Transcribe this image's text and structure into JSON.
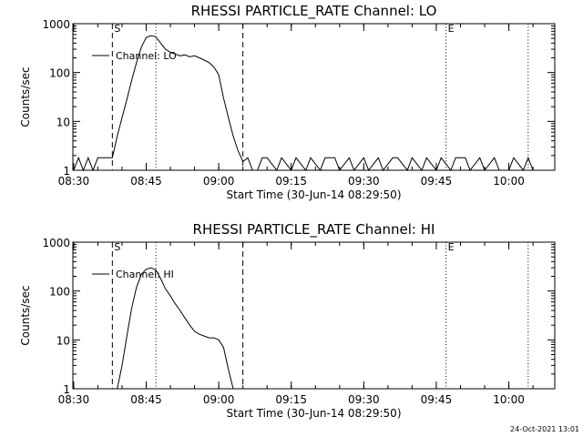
{
  "chart_data": [
    {
      "type": "line",
      "title": "RHESSI PARTICLE_RATE Channel: LO",
      "xlabel": "Start Time (30-Jun-14 08:29:50)",
      "ylabel": "Counts/sec",
      "y_scale": "log",
      "ylim": [
        1,
        1000
      ],
      "xlim": [
        "08:29:50",
        "10:09:30"
      ],
      "x_ticks": [
        "08:30",
        "08:45",
        "09:00",
        "09:15",
        "09:30",
        "09:45",
        "10:00"
      ],
      "y_ticks": [
        "1",
        "10",
        "100",
        "1000"
      ],
      "legend": {
        "position": "top-left",
        "entries": [
          "Channel: LO"
        ]
      },
      "markers": [
        {
          "time": "08:38",
          "style": "dashed",
          "label": "S"
        },
        {
          "time": "08:47",
          "style": "dotted",
          "label": ""
        },
        {
          "time": "09:05",
          "style": "dashed",
          "label": ""
        },
        {
          "time": "09:47",
          "style": "dotted",
          "label": "E"
        },
        {
          "time": "10:04",
          "style": "dotted",
          "label": ""
        }
      ],
      "series": [
        {
          "name": "Channel: LO",
          "x": [
            "08:30",
            "08:31",
            "08:32",
            "08:33",
            "08:34",
            "08:35",
            "08:36",
            "08:37",
            "08:38",
            "08:38:30",
            "08:39",
            "08:40",
            "08:41",
            "08:42",
            "08:43",
            "08:44",
            "08:45",
            "08:46",
            "08:47",
            "08:48",
            "08:49",
            "08:50",
            "08:51",
            "08:52",
            "08:53",
            "08:54",
            "08:55",
            "08:56",
            "08:57",
            "08:58",
            "08:59",
            "09:00",
            "09:01",
            "09:02",
            "09:03",
            "09:04",
            "09:05",
            "09:06",
            "09:07",
            "09:08",
            "09:09",
            "09:10",
            "09:12",
            "09:13",
            "09:15",
            "09:16",
            "09:18",
            "09:19",
            "09:21",
            "09:22",
            "09:24",
            "09:25",
            "09:27",
            "09:28",
            "09:30",
            "09:31",
            "09:33",
            "09:34",
            "09:36",
            "09:37",
            "09:39",
            "09:40",
            "09:42",
            "09:43",
            "09:45",
            "09:46",
            "09:48",
            "09:49",
            "09:51",
            "09:52",
            "09:54",
            "09:55",
            "09:57",
            "09:58",
            "10:00",
            "10:01",
            "10:03",
            "10:04",
            "10:05"
          ],
          "y": [
            1,
            1.8,
            1,
            1.8,
            1,
            1.8,
            1.8,
            1.8,
            1.8,
            3,
            5,
            12,
            28,
            70,
            160,
            330,
            520,
            570,
            540,
            400,
            300,
            260,
            240,
            220,
            230,
            210,
            220,
            200,
            180,
            160,
            130,
            90,
            30,
            12,
            5,
            2.5,
            1.5,
            1.8,
            1,
            1,
            1.8,
            1.8,
            1,
            1.8,
            1,
            1.8,
            1,
            1.8,
            1,
            1.8,
            1.8,
            1,
            1.8,
            1,
            1.8,
            1,
            1.8,
            1,
            1.8,
            1.8,
            1,
            1.8,
            1,
            1.8,
            1,
            1.8,
            1,
            1.8,
            1.8,
            1,
            1.8,
            1,
            1.8,
            1,
            1,
            1.8,
            1,
            1.8,
            1
          ]
        }
      ]
    },
    {
      "type": "line",
      "title": "RHESSI PARTICLE_RATE Channel: HI",
      "xlabel": "Start Time (30-Jun-14 08:29:50)",
      "ylabel": "Counts/sec",
      "y_scale": "log",
      "ylim": [
        1,
        1000
      ],
      "xlim": [
        "08:29:50",
        "10:09:30"
      ],
      "x_ticks": [
        "08:30",
        "08:45",
        "09:00",
        "09:15",
        "09:30",
        "09:45",
        "10:00"
      ],
      "y_ticks": [
        "1",
        "10",
        "100",
        "1000"
      ],
      "legend": {
        "position": "top-left",
        "entries": [
          "Channel: HI"
        ]
      },
      "markers": [
        {
          "time": "08:38",
          "style": "dashed",
          "label": "S"
        },
        {
          "time": "08:47",
          "style": "dotted",
          "label": ""
        },
        {
          "time": "09:05",
          "style": "dashed",
          "label": ""
        },
        {
          "time": "09:47",
          "style": "dotted",
          "label": "E"
        },
        {
          "time": "10:04",
          "style": "dotted",
          "label": ""
        }
      ],
      "series": [
        {
          "name": "Channel: HI",
          "x": [
            "08:39",
            "08:40",
            "08:41",
            "08:42",
            "08:43",
            "08:44",
            "08:45",
            "08:46",
            "08:47",
            "08:48",
            "08:49",
            "08:50",
            "08:51",
            "08:52",
            "08:53",
            "08:54",
            "08:55",
            "08:56",
            "08:57",
            "08:58",
            "08:59",
            "09:00",
            "09:01",
            "09:02",
            "09:03"
          ],
          "y": [
            1,
            3,
            12,
            45,
            120,
            220,
            280,
            300,
            270,
            180,
            110,
            80,
            55,
            40,
            28,
            20,
            15,
            13,
            12,
            11,
            11,
            10,
            7,
            2.5,
            1
          ]
        }
      ]
    }
  ],
  "timestamp": "24-Oct-2021 13:01"
}
